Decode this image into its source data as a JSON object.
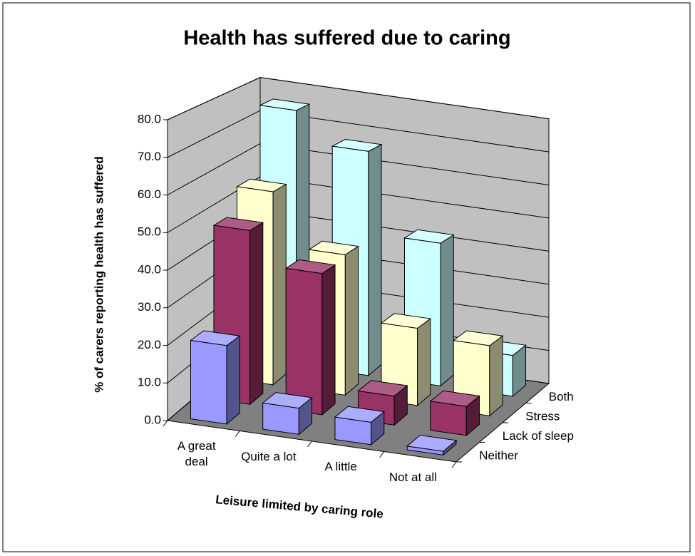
{
  "chart_data": {
    "type": "bar3d",
    "title": "Health has suffered due to caring",
    "y_label": "% of carers reporting health has suffered",
    "x_label": "Leisure limited by caring role",
    "categories": [
      "A great deal",
      "Quite a lot",
      "A little",
      "Not at all"
    ],
    "series": [
      {
        "name": "Neither",
        "color": "#9999ff",
        "values": [
          21,
          7,
          6,
          1
        ]
      },
      {
        "name": "Lack of sleep",
        "color": "#993366",
        "values": [
          48,
          39,
          8,
          8
        ]
      },
      {
        "name": "Stress",
        "color": "#ffffcc",
        "values": [
          55,
          40,
          22,
          20
        ]
      },
      {
        "name": "Both",
        "color": "#ccffff",
        "values": [
          75,
          66,
          42,
          12
        ]
      }
    ],
    "ylim": [
      0,
      80
    ],
    "yticks": [
      {
        "value": 0,
        "label": "0.0"
      },
      {
        "value": 10,
        "label": "10.0"
      },
      {
        "value": 20,
        "label": "20.0"
      },
      {
        "value": 30,
        "label": "30.0"
      },
      {
        "value": 40,
        "label": "40.0"
      },
      {
        "value": 50,
        "label": "50.0"
      },
      {
        "value": 60,
        "label": "60.0"
      },
      {
        "value": 70,
        "label": "70.0"
      },
      {
        "value": 80,
        "label": "80.0"
      }
    ],
    "grid": true
  }
}
